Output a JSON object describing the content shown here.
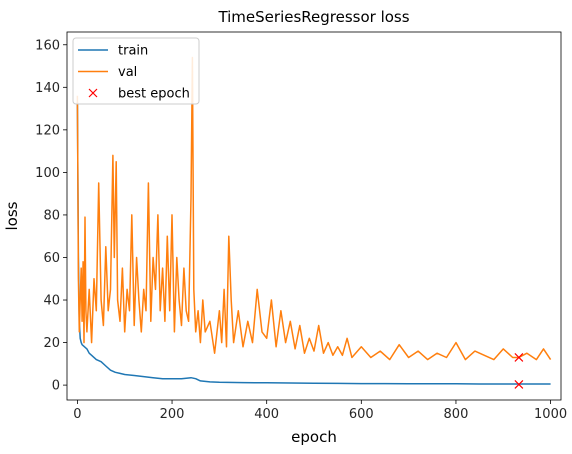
{
  "chart_data": {
    "type": "line",
    "title": "TimeSeriesRegressor loss",
    "xlabel": "epoch",
    "ylabel": "loss",
    "xlim": [
      -22,
      1022
    ],
    "ylim": [
      -7,
      166
    ],
    "xticks": [
      0,
      200,
      400,
      600,
      800,
      1000
    ],
    "yticks": [
      0,
      20,
      40,
      60,
      80,
      100,
      120,
      140,
      160
    ],
    "grid": false,
    "legend_position": "top-left",
    "colors": {
      "train": "#1f77b4",
      "val": "#ff7f0e",
      "best": "#ff0000"
    },
    "series": [
      {
        "name": "train",
        "x": [
          0,
          2,
          4,
          6,
          8,
          10,
          15,
          20,
          25,
          30,
          40,
          50,
          60,
          70,
          80,
          90,
          100,
          120,
          140,
          160,
          180,
          200,
          220,
          240,
          250,
          260,
          280,
          300,
          350,
          400,
          450,
          500,
          550,
          600,
          650,
          700,
          750,
          800,
          850,
          900,
          950,
          1000
        ],
        "values": [
          133,
          60,
          30,
          22,
          20,
          19,
          18,
          17,
          15,
          14,
          12,
          11,
          9,
          7,
          6,
          5.5,
          5,
          4.5,
          4,
          3.5,
          3,
          3,
          3,
          3.5,
          3,
          2,
          1.5,
          1.3,
          1.2,
          1.1,
          1.0,
          0.9,
          0.8,
          0.7,
          0.7,
          0.6,
          0.6,
          0.6,
          0.5,
          0.5,
          0.5,
          0.5
        ]
      },
      {
        "name": "val",
        "x": [
          0,
          2,
          4,
          6,
          8,
          10,
          12,
          14,
          16,
          18,
          20,
          25,
          30,
          35,
          40,
          45,
          50,
          55,
          60,
          65,
          70,
          75,
          78,
          82,
          85,
          90,
          95,
          100,
          105,
          110,
          115,
          120,
          125,
          130,
          135,
          140,
          145,
          150,
          155,
          160,
          165,
          170,
          175,
          180,
          185,
          190,
          195,
          200,
          205,
          210,
          215,
          220,
          225,
          230,
          235,
          240,
          243,
          246,
          250,
          255,
          260,
          265,
          270,
          280,
          290,
          300,
          305,
          310,
          315,
          320,
          325,
          330,
          340,
          350,
          360,
          370,
          380,
          390,
          400,
          410,
          420,
          430,
          440,
          450,
          460,
          470,
          480,
          490,
          500,
          510,
          520,
          530,
          540,
          550,
          560,
          570,
          580,
          600,
          620,
          640,
          660,
          680,
          700,
          720,
          740,
          760,
          780,
          800,
          820,
          840,
          860,
          880,
          900,
          920,
          933,
          950,
          970,
          985,
          1000
        ],
        "values": [
          136,
          50,
          25,
          40,
          55,
          30,
          58,
          20,
          79,
          35,
          25,
          45,
          20,
          50,
          35,
          95,
          40,
          28,
          65,
          35,
          45,
          108,
          60,
          105,
          40,
          30,
          55,
          25,
          45,
          35,
          80,
          28,
          60,
          40,
          25,
          45,
          35,
          95,
          30,
          60,
          45,
          80,
          35,
          55,
          30,
          70,
          35,
          80,
          25,
          60,
          40,
          28,
          55,
          35,
          30,
          88,
          154,
          45,
          25,
          35,
          20,
          40,
          25,
          30,
          15,
          35,
          20,
          45,
          18,
          70,
          40,
          20,
          35,
          18,
          30,
          20,
          45,
          25,
          22,
          40,
          18,
          35,
          20,
          30,
          17,
          28,
          15,
          22,
          16,
          28,
          15,
          20,
          14,
          18,
          14,
          22,
          13,
          18,
          13,
          16,
          12,
          19,
          13,
          16,
          12,
          15,
          13,
          20,
          12,
          16,
          14,
          12,
          17,
          13,
          13,
          15,
          12,
          17,
          12
        ]
      },
      {
        "name": "best epoch",
        "marker": "x",
        "x": [
          933,
          933
        ],
        "values": [
          13,
          0.3
        ]
      }
    ]
  }
}
